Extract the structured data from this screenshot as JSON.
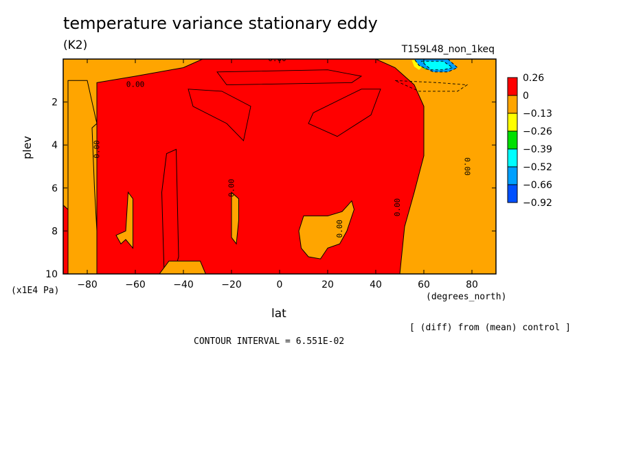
{
  "chart_data": {
    "type": "heatmap",
    "title": "temperature variance stationary eddy",
    "units": "(K2)",
    "run_label": "T159L48_non_1keq",
    "xlabel": "lat",
    "x_units": "(degrees_north)",
    "ylabel": "plev",
    "y_scale": "(x1E4 Pa)",
    "xlim": [
      -90,
      90
    ],
    "ylim": [
      10,
      0
    ],
    "x_ticks": [
      -80,
      -60,
      -40,
      -20,
      0,
      20,
      40,
      60,
      80
    ],
    "x_tick_labels": [
      "−80",
      "−60",
      "−40",
      "−20",
      "0",
      "20",
      "40",
      "60",
      "80"
    ],
    "y_ticks": [
      2,
      4,
      6,
      8,
      10
    ],
    "y_tick_labels": [
      "2",
      "4",
      "6",
      "8",
      "10"
    ],
    "levels": [
      "0.26",
      "0",
      "−0.13",
      "−0.26",
      "−0.39",
      "−0.52",
      "−0.66",
      "−0.92"
    ],
    "level_colors": [
      "#ff0000",
      "#ffa500",
      "#ffff00",
      "#00e000",
      "#00ffff",
      "#00a0ff",
      "#0050ff"
    ],
    "contour_labels": [
      "0.00",
      "0.00",
      "0.00",
      "0.00",
      "0.00",
      "0.00",
      "0.00"
    ],
    "contour_interval": "CONTOUR INTERVAL = 6.551E-02",
    "note": "[ (diff) from (mean) control ]",
    "regions": {
      "red": [
        [
          [
            -90,
            6.8
          ],
          [
            -86,
            7.2
          ],
          [
            -84,
            8.5
          ],
          [
            -86,
            10
          ],
          [
            -90,
            10
          ]
        ],
        [
          [
            -76,
            1.1
          ],
          [
            -60,
            0.8
          ],
          [
            -40,
            0.4
          ],
          [
            -32,
            0
          ],
          [
            40,
            0
          ],
          [
            48,
            0.4
          ],
          [
            56,
            1.2
          ],
          [
            60,
            2.2
          ],
          [
            60,
            4.5
          ],
          [
            56,
            6.2
          ],
          [
            52,
            7.8
          ],
          [
            50,
            10
          ],
          [
            -76,
            10
          ]
        ],
        [
          [
            -43,
            4.2
          ],
          [
            -42,
            9.2
          ],
          [
            -44,
            10
          ],
          [
            -48,
            10
          ],
          [
            -49,
            6.2
          ],
          [
            -47,
            4.4
          ]
        ]
      ],
      "orange": [
        [
          [
            -76,
            3
          ],
          [
            -78,
            3.2
          ],
          [
            -77,
            6
          ],
          [
            -76,
            8
          ],
          [
            -76,
            10
          ],
          [
            -88,
            10
          ],
          [
            -88,
            1
          ],
          [
            -80,
            1
          ]
        ],
        [
          [
            -63,
            6.2
          ],
          [
            -61,
            6.5
          ],
          [
            -61,
            8.8
          ],
          [
            -64,
            8.4
          ],
          [
            -66,
            8.6
          ],
          [
            -68,
            8.2
          ],
          [
            -64,
            8
          ]
        ],
        [
          [
            -20,
            6.2
          ],
          [
            -17,
            6.5
          ],
          [
            -17,
            7.5
          ],
          [
            -18,
            8.6
          ],
          [
            -20,
            8.3
          ]
        ],
        [
          [
            20,
            8.8
          ],
          [
            25,
            8.6
          ],
          [
            28,
            8
          ],
          [
            31,
            7
          ],
          [
            30,
            6.6
          ],
          [
            26,
            7.1
          ],
          [
            20,
            7.3
          ],
          [
            10,
            7.3
          ],
          [
            8,
            8
          ],
          [
            9,
            8.8
          ],
          [
            12,
            9.2
          ],
          [
            17,
            9.3
          ]
        ],
        [
          [
            -50,
            10
          ],
          [
            -46,
            10.2
          ],
          [
            -30,
            10.2
          ],
          [
            -33,
            9.4
          ],
          [
            -46,
            9.4
          ]
        ]
      ],
      "blue_top": [
        [
          56,
          0
        ],
        [
          70,
          0
        ],
        [
          74,
          0.4
        ],
        [
          70,
          0.6
        ],
        [
          64,
          0.6
        ],
        [
          58,
          0.3
        ]
      ],
      "cyan_top": [
        [
          59,
          0.1
        ],
        [
          68,
          0.1
        ],
        [
          72,
          0.4
        ],
        [
          68,
          0.5
        ],
        [
          63,
          0.5
        ]
      ],
      "green_top": [
        [
          57,
          0.05
        ],
        [
          60,
          0.05
        ],
        [
          63,
          0.3
        ],
        [
          61,
          0.5
        ],
        [
          58,
          0.3
        ]
      ],
      "yellow_top": [
        [
          55,
          0.05
        ],
        [
          57,
          0.05
        ],
        [
          60,
          0.3
        ],
        [
          58,
          0.5
        ],
        [
          56,
          0.35
        ]
      ]
    }
  }
}
